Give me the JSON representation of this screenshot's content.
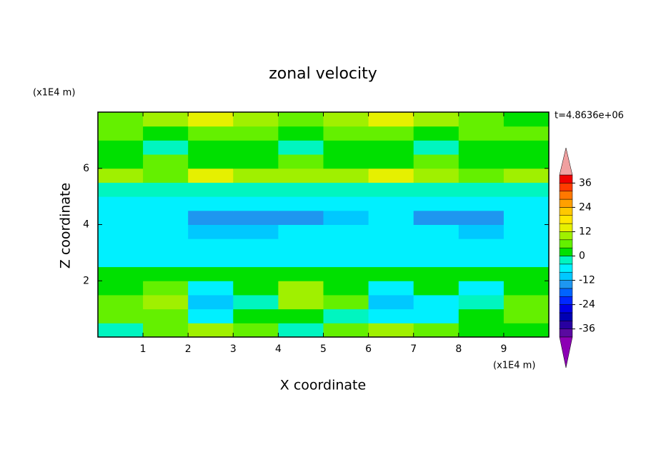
{
  "chart_data": {
    "type": "contour",
    "title": "zonal velocity",
    "time_label": "t=4.8636e+06",
    "x_label": "X coordinate",
    "y_label": "Z coordinate",
    "x_unit": "(x1E4 m)",
    "y_unit": "(x1E4 m)",
    "xlim": [
      0,
      10
    ],
    "ylim": [
      0,
      8
    ],
    "xticks": [
      1,
      2,
      3,
      4,
      5,
      6,
      7,
      8,
      9
    ],
    "yticks": [
      2,
      4,
      6
    ],
    "x": [
      0,
      1,
      2,
      3,
      4,
      5,
      6,
      7,
      8,
      9,
      10
    ],
    "y": [
      0,
      0.5,
      1,
      1.5,
      2,
      2.5,
      3,
      3.5,
      4,
      4.5,
      5,
      5.5,
      6,
      6.5,
      7,
      7.5,
      8
    ],
    "z": [
      [
        -2,
        6,
        10,
        6,
        -2,
        6,
        10,
        6,
        2,
        2
      ],
      [
        6,
        6,
        -6,
        2,
        2,
        -2,
        -6,
        -6,
        2,
        6
      ],
      [
        6,
        10,
        -10,
        -2,
        10,
        6,
        -10,
        -6,
        -2,
        6
      ],
      [
        2,
        6,
        -6,
        2,
        10,
        2,
        -6,
        2,
        -6,
        2
      ],
      [
        2,
        2,
        2,
        2,
        2,
        2,
        2,
        2,
        2,
        2
      ],
      [
        -6,
        -6,
        -6,
        -6,
        -6,
        -6,
        -6,
        -6,
        -6,
        -6
      ],
      [
        -6,
        -6,
        -6,
        -6,
        -6,
        -6,
        -6,
        -6,
        -6,
        -6
      ],
      [
        -6,
        -6,
        -10,
        -10,
        -6,
        -6,
        -6,
        -6,
        -10,
        -6
      ],
      [
        -6,
        -6,
        -14,
        -14,
        -14,
        -10,
        -6,
        -14,
        -14,
        -6
      ],
      [
        -6,
        -6,
        -6,
        -6,
        -6,
        -6,
        -6,
        -6,
        -6,
        -6
      ],
      [
        -2,
        -2,
        -2,
        -2,
        -2,
        -2,
        -2,
        -2,
        -2,
        -2
      ],
      [
        10,
        6,
        14,
        10,
        10,
        10,
        14,
        10,
        6,
        10
      ],
      [
        2,
        6,
        2,
        2,
        6,
        2,
        2,
        6,
        2,
        2
      ],
      [
        2,
        -2,
        2,
        2,
        -2,
        2,
        2,
        -2,
        2,
        2
      ],
      [
        6,
        2,
        6,
        6,
        2,
        6,
        6,
        2,
        6,
        6
      ],
      [
        6,
        10,
        14,
        10,
        6,
        10,
        14,
        10,
        6,
        2
      ]
    ],
    "levels": [
      -40,
      -36,
      -32,
      -28,
      -24,
      -20,
      -16,
      -12,
      -8,
      -4,
      0,
      4,
      8,
      12,
      16,
      20,
      24,
      28,
      32,
      36,
      40
    ],
    "colors": [
      "#5a0aa0",
      "#2800a0",
      "#0000b4",
      "#0000e6",
      "#0028ff",
      "#0064ff",
      "#1e96f0",
      "#00c8ff",
      "#00f0ff",
      "#00f5c0",
      "#00e000",
      "#64f000",
      "#a0f000",
      "#e6f000",
      "#ffe600",
      "#ffc800",
      "#ffa000",
      "#ff7800",
      "#ff3c00",
      "#f00000"
    ],
    "extend_colors": [
      "#8c00b4",
      "#f0a0a0"
    ],
    "colorbar_ticks": [
      -36,
      -24,
      -12,
      0,
      12,
      24,
      36
    ]
  }
}
